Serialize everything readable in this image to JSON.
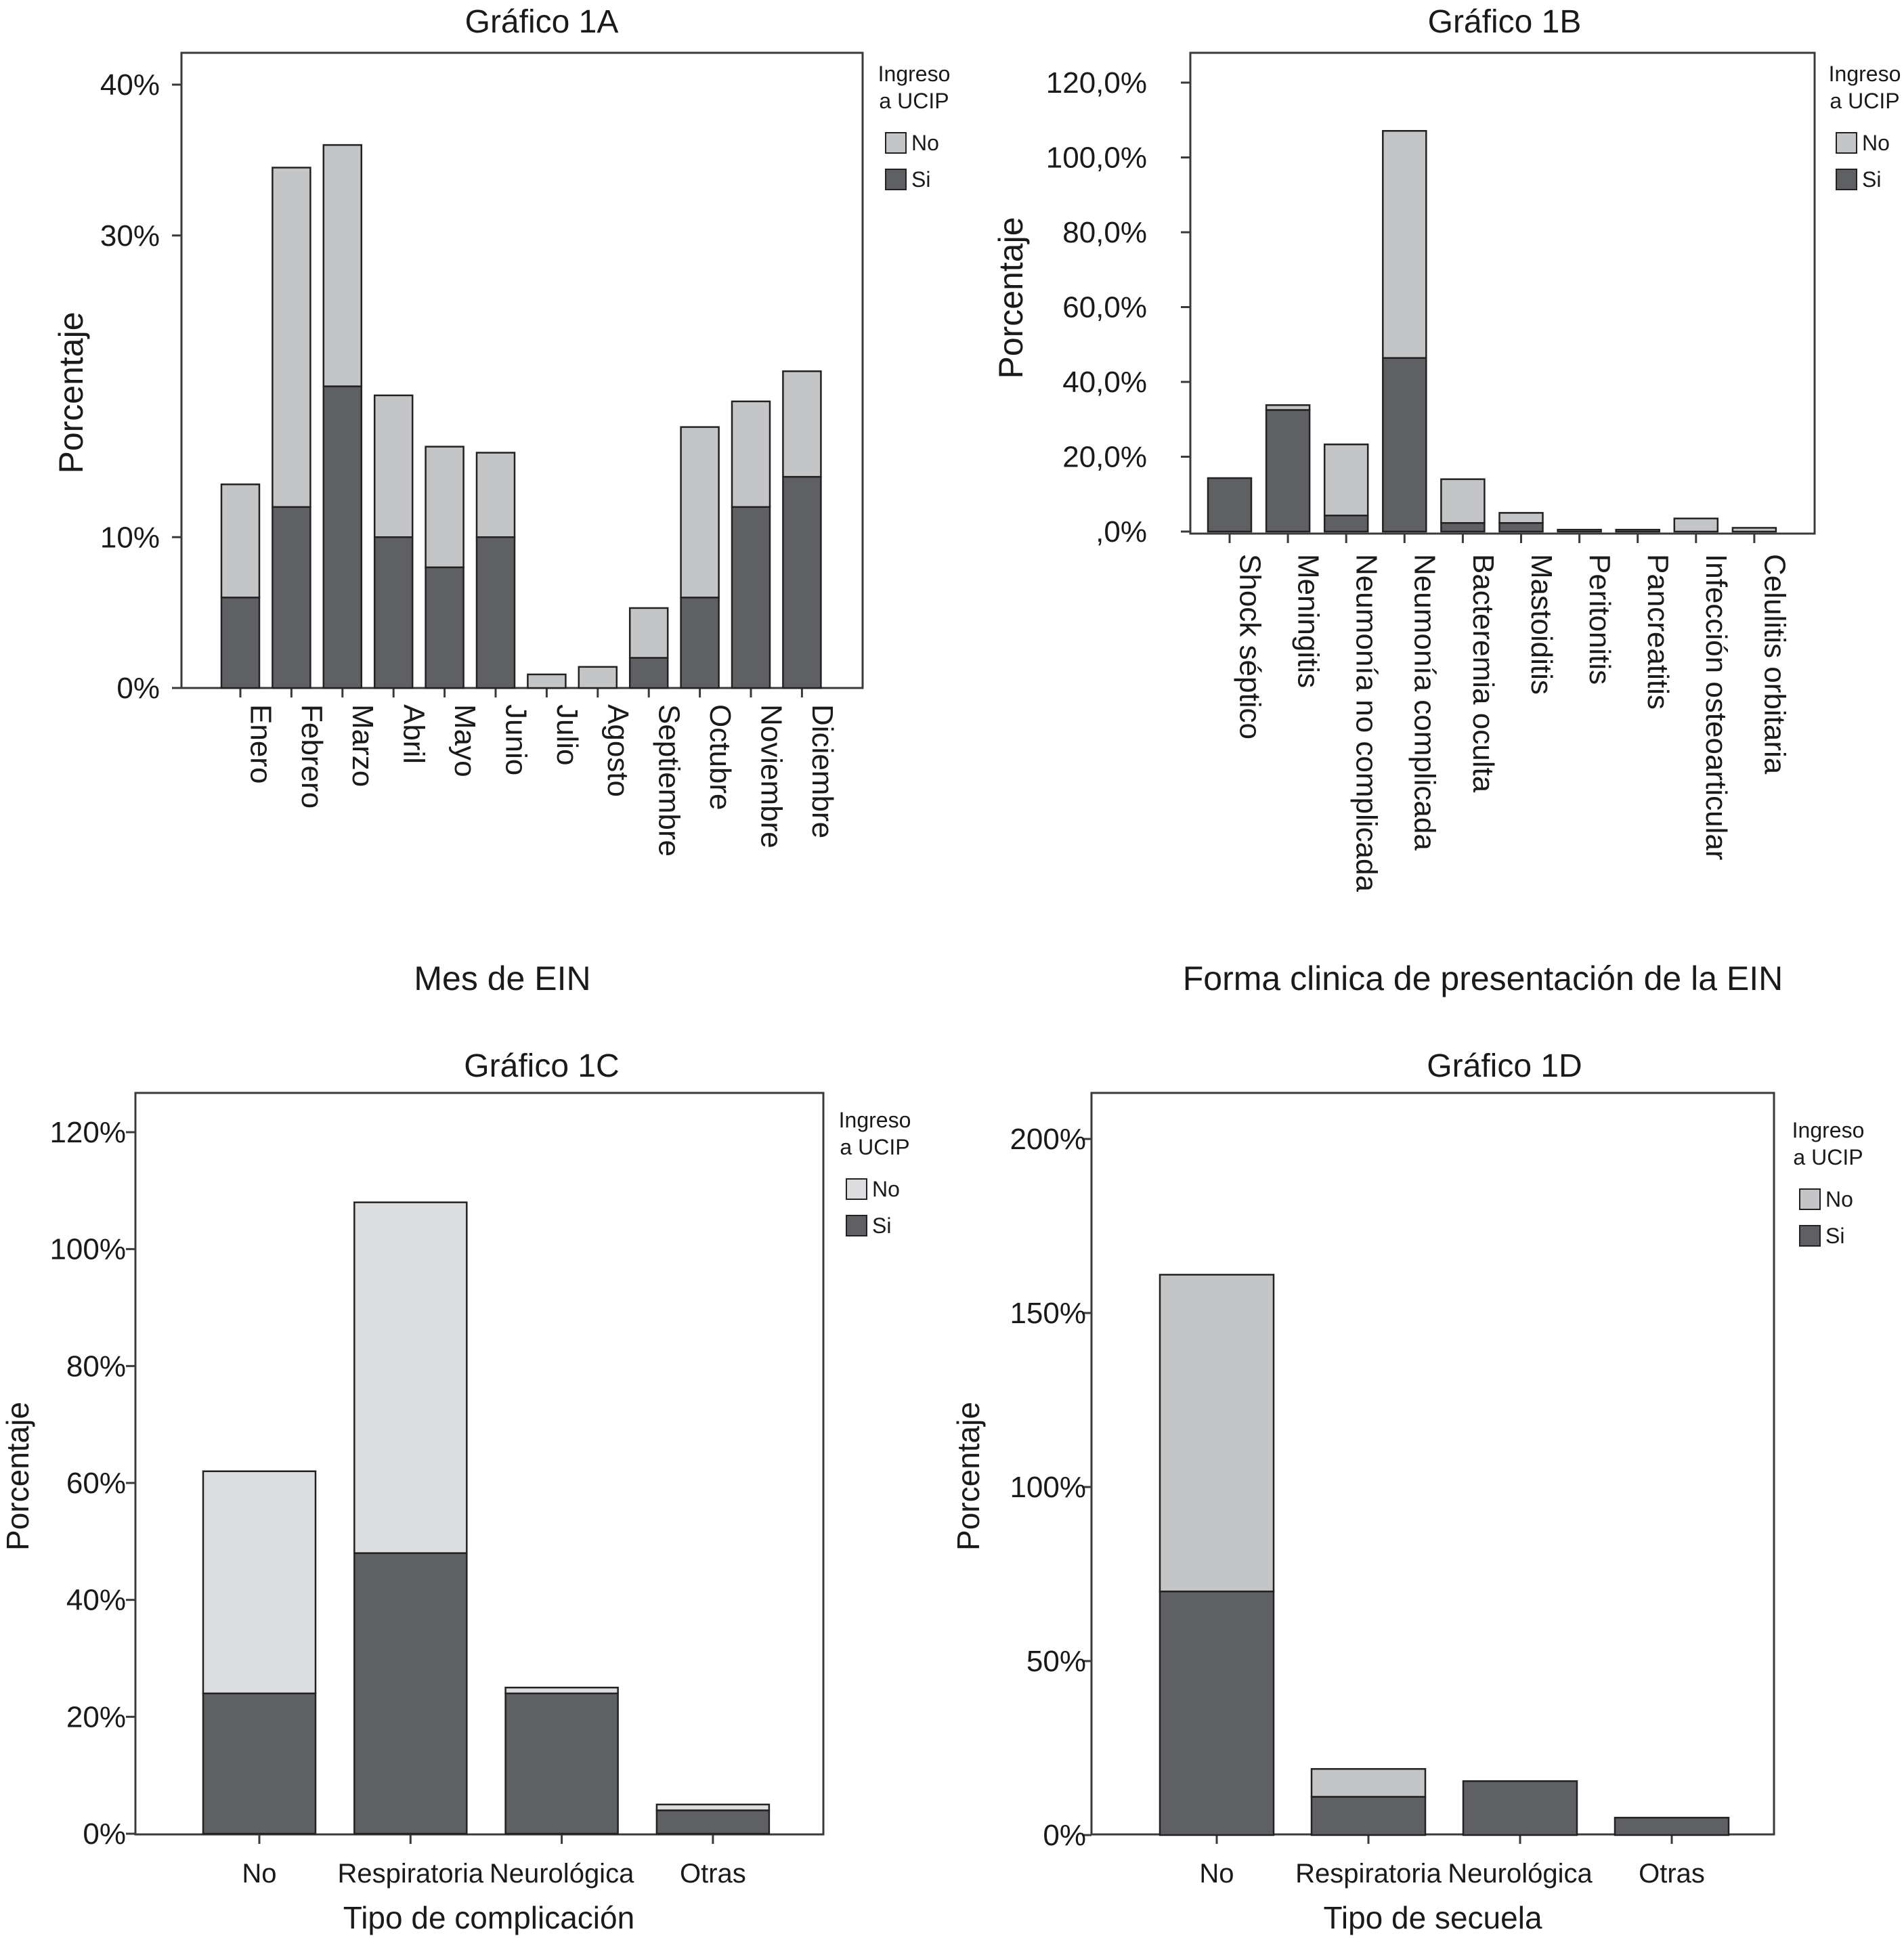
{
  "legend_title_line1": "Ingreso",
  "legend_title_line2": "a UCIP",
  "legend_no": "No",
  "legend_si": "Si",
  "colors": {
    "si": "#5f6064",
    "no_a": "#c4c5c7",
    "no_c": "#dcdddf",
    "frame": "#3a3a3a"
  },
  "chart_data": [
    {
      "id": "1A",
      "type": "bar",
      "stacked": true,
      "title": "Gráfico 1A",
      "xlabel": "Mes de EIN",
      "ylabel": "Porcentaje",
      "ylim": [
        0,
        40
      ],
      "yticks": [
        0,
        10,
        30,
        40
      ],
      "ytick_labels": [
        "0%",
        "10%",
        "30%",
        "40%"
      ],
      "categories": [
        "Enero",
        "Febrero",
        "Marzo",
        "Abril",
        "Mayo",
        "Junio",
        "Julio",
        "Agosto",
        "Septiembre",
        "Octubre",
        "Noviembre",
        "Diciembre"
      ],
      "series": [
        {
          "name": "Si",
          "values": [
            6,
            12,
            20,
            10,
            8,
            10,
            0,
            0,
            2,
            6,
            12,
            14
          ]
        },
        {
          "name": "No",
          "values": [
            7.5,
            22.5,
            16,
            9.4,
            8,
            5.6,
            0.9,
            1.4,
            3.3,
            11.3,
            7,
            7
          ]
        }
      ],
      "legend": "top-right"
    },
    {
      "id": "1B",
      "type": "bar",
      "stacked": true,
      "title": "Gráfico 1B",
      "xlabel": "Forma clinica de presentación de la EIN",
      "ylabel": "Porcentaje",
      "ylim": [
        0,
        120
      ],
      "yticks": [
        0,
        20,
        40,
        60,
        80,
        100,
        120
      ],
      "ytick_labels": [
        ",0%",
        "20,0%",
        "40,0%",
        "60,0%",
        "80,0%",
        "100,0%",
        "120,0%"
      ],
      "categories": [
        "Shock séptico",
        "Meningitis",
        "Neumonía no complicada",
        "Neumonía complicada",
        "Bacteremia oculta",
        "Mastoiditis",
        "Peritonitis",
        "Pancreatitis",
        "Infección osteoarticular",
        "Celulitis orbitaria"
      ],
      "series": [
        {
          "name": "Si",
          "values": [
            14.3,
            32.5,
            4.3,
            46.4,
            2.3,
            2.3,
            0,
            0,
            0,
            0
          ]
        },
        {
          "name": "No",
          "values": [
            0,
            1.3,
            19,
            60.7,
            11.7,
            2.7,
            0.5,
            0.5,
            3.5,
            1
          ]
        }
      ],
      "legend": "top-right"
    },
    {
      "id": "1C",
      "type": "bar",
      "stacked": true,
      "title": "Gráfico 1C",
      "xlabel": "Tipo de complicación",
      "ylabel": "Porcentaje",
      "ylim": [
        0,
        120
      ],
      "yticks": [
        0,
        20,
        40,
        60,
        80,
        100,
        120
      ],
      "ytick_labels": [
        "0%",
        "20%",
        "40%",
        "60%",
        "80%",
        "100%",
        "120%"
      ],
      "categories": [
        "No",
        "Respiratoria",
        "Neurológica",
        "Otras"
      ],
      "series": [
        {
          "name": "Si",
          "values": [
            24,
            48,
            24,
            4
          ]
        },
        {
          "name": "No",
          "values": [
            38,
            60,
            1,
            1
          ]
        }
      ],
      "legend": "top-right"
    },
    {
      "id": "1D",
      "type": "bar",
      "stacked": true,
      "title": "Gráfico 1D",
      "xlabel": "Tipo de secuela",
      "ylabel": "Porcentaje",
      "ylim": [
        0,
        200
      ],
      "yticks": [
        0,
        50,
        100,
        150,
        200
      ],
      "ytick_labels": [
        "0%",
        "50%",
        "100%",
        "150%",
        "200%"
      ],
      "categories": [
        "No",
        "Respiratoria",
        "Neurológica",
        "Otras"
      ],
      "series": [
        {
          "name": "Si",
          "values": [
            70,
            11,
            15.5,
            5
          ]
        },
        {
          "name": "No",
          "values": [
            91,
            8,
            0,
            0
          ]
        }
      ],
      "legend": "top-right"
    }
  ]
}
